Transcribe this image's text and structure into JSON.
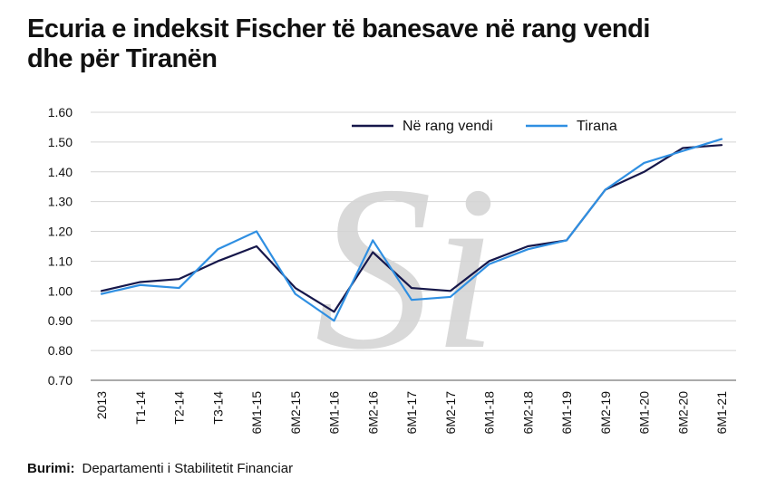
{
  "title_lines": [
    "Ecuria e indeksit Fischer të banesave në rang vendi",
    "dhe për Tiranën"
  ],
  "source": {
    "label": "Burimi:",
    "text": "Departamenti i Stabilitetit Financiar"
  },
  "watermark": "Si",
  "colors": {
    "national": "#16174a",
    "tirana": "#2f8fe2",
    "grid": "#d4d4d4",
    "watermark": "#d9d9d9"
  },
  "chart_data": {
    "type": "line",
    "categories": [
      "2013",
      "T1-14",
      "T2-14",
      "T3-14",
      "6M1-15",
      "6M2-15",
      "6M1-16",
      "6M2-16",
      "6M1-17",
      "6M2-17",
      "6M1-18",
      "6M2-18",
      "6M1-19",
      "6M2-19",
      "6M1-20",
      "6M2-20",
      "6M1-21"
    ],
    "series": [
      {
        "name": "Në rang vendi",
        "values": [
          1.0,
          1.03,
          1.04,
          1.1,
          1.15,
          1.01,
          0.93,
          1.13,
          1.01,
          1.0,
          1.1,
          1.15,
          1.17,
          1.34,
          1.4,
          1.48,
          1.49
        ]
      },
      {
        "name": "Tirana",
        "values": [
          0.99,
          1.02,
          1.01,
          1.14,
          1.2,
          0.99,
          0.9,
          1.17,
          0.97,
          0.98,
          1.09,
          1.14,
          1.17,
          1.34,
          1.43,
          1.47,
          1.51
        ]
      }
    ],
    "yticks": [
      "0.70",
      "0.80",
      "0.90",
      "1.00",
      "1.10",
      "1.20",
      "1.30",
      "1.40",
      "1.50",
      "1.60"
    ],
    "ylim": [
      0.7,
      1.6
    ],
    "grid": true,
    "legend": "top-right"
  }
}
